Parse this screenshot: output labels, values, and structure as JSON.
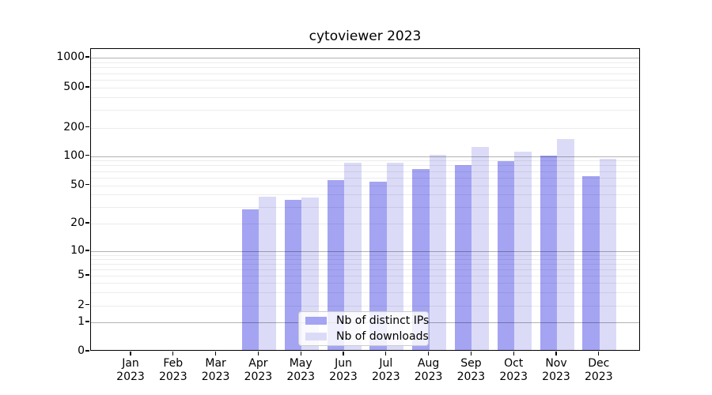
{
  "chart_data": {
    "type": "bar",
    "title": "cytoviewer 2023",
    "x_categories": [
      "Jan",
      "Feb",
      "Mar",
      "Apr",
      "May",
      "Jun",
      "Jul",
      "Aug",
      "Sep",
      "Oct",
      "Nov",
      "Dec"
    ],
    "x_year": "2023",
    "y_scale": "symlog",
    "y_ticks": [
      0,
      1,
      2,
      5,
      10,
      20,
      50,
      100,
      200,
      500,
      1000
    ],
    "y_minor_gridline_values": [
      3,
      4,
      6,
      7,
      8,
      9,
      30,
      40,
      60,
      70,
      80,
      90,
      300,
      400,
      600,
      700,
      800,
      900
    ],
    "y_major_gridline_values": [
      1,
      10,
      100,
      1000
    ],
    "ylim": [
      0,
      1300
    ],
    "grid": true,
    "legend_position": "lower center",
    "series": [
      {
        "name": "Nb of distinct IPs",
        "color": "#a4a4f3",
        "values": [
          0,
          0,
          0,
          28,
          35,
          57,
          54,
          74,
          80,
          88,
          101,
          62
        ]
      },
      {
        "name": "Nb of downloads",
        "color": "#dbdbf8",
        "values": [
          0,
          0,
          0,
          38,
          37,
          86,
          86,
          102,
          125,
          111,
          150,
          93
        ]
      }
    ]
  }
}
